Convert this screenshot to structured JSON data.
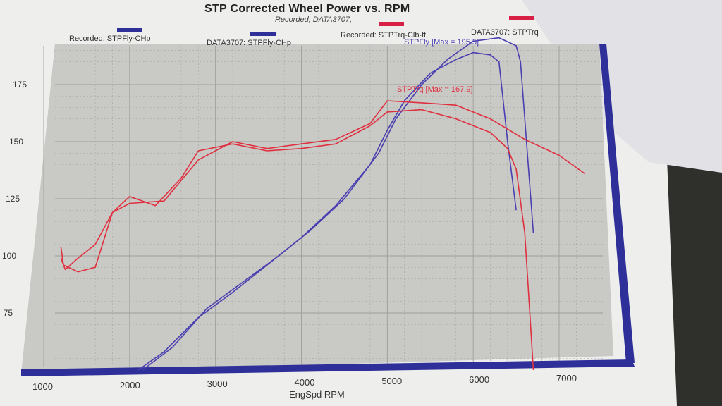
{
  "title": "STP Corrected Wheel Power vs. RPM",
  "subtitle": "Recorded, DATA3707,",
  "colors": {
    "plot_bg": "#c9c9c6",
    "paper": "#eeeeec",
    "grid": "#9d9d9a",
    "power": "#4a3fb0",
    "torque": "#e0303f",
    "frame": "#2f2f9a"
  },
  "legend": [
    {
      "label": "Recorded: STPFly-CHp",
      "color": "#2f2f9a"
    },
    {
      "label": "DATA3707: STPFly-CHp",
      "color": "#2f2f9a"
    },
    {
      "label": "Recorded: STPTrq-Clb-ft",
      "color": "#d81f45"
    },
    {
      "label": "DATA3707: STPTrq",
      "color": "#d81f45"
    }
  ],
  "chart_data": {
    "type": "line",
    "title": "STP Corrected Wheel Power vs. RPM",
    "xlabel": "EngSpd RPM",
    "ylabel": "",
    "xlim": [
      1000,
      7500
    ],
    "ylim": [
      50,
      195
    ],
    "x_ticks": [
      1000,
      2000,
      3000,
      4000,
      5000,
      6000,
      7000
    ],
    "y_ticks": [
      75,
      100,
      125,
      150,
      175
    ],
    "annotations": [
      {
        "text": "STPFly [Max = 195.5]",
        "series": "STPFly",
        "color": "#4a3fb0"
      },
      {
        "text": "STPTrq [Max = 167.9]",
        "series": "STPTrq",
        "color": "#e0303f"
      }
    ],
    "series": [
      {
        "name": "Recorded: STPFly-CHp",
        "color": "#4a3fb0",
        "points": [
          [
            2100,
            50
          ],
          [
            2400,
            58
          ],
          [
            2800,
            73
          ],
          [
            3200,
            84
          ],
          [
            3600,
            96
          ],
          [
            4000,
            108
          ],
          [
            4400,
            122
          ],
          [
            4800,
            140
          ],
          [
            5000,
            155
          ],
          [
            5200,
            168
          ],
          [
            5500,
            180
          ],
          [
            5800,
            186
          ],
          [
            6000,
            189
          ],
          [
            6200,
            188
          ],
          [
            6300,
            185
          ],
          [
            6400,
            150
          ],
          [
            6500,
            120
          ]
        ]
      },
      {
        "name": "DATA3707: STPFly-CHp",
        "color": "#4a3fb0",
        "points": [
          [
            2150,
            50
          ],
          [
            2500,
            60
          ],
          [
            2900,
            77
          ],
          [
            3300,
            88
          ],
          [
            3700,
            99
          ],
          [
            4100,
            111
          ],
          [
            4500,
            125
          ],
          [
            4900,
            145
          ],
          [
            5100,
            160
          ],
          [
            5400,
            175
          ],
          [
            5700,
            186
          ],
          [
            6000,
            194
          ],
          [
            6300,
            195.5
          ],
          [
            6500,
            192
          ],
          [
            6550,
            185
          ],
          [
            6620,
            150
          ],
          [
            6700,
            110
          ]
        ]
      },
      {
        "name": "Recorded: STPTrq-Clb-ft",
        "color": "#e0303f",
        "points": [
          [
            1200,
            99
          ],
          [
            1250,
            94
          ],
          [
            1400,
            99
          ],
          [
            1600,
            105
          ],
          [
            1800,
            119
          ],
          [
            2000,
            126
          ],
          [
            2300,
            122
          ],
          [
            2600,
            134
          ],
          [
            2800,
            146
          ],
          [
            3200,
            149
          ],
          [
            3600,
            146
          ],
          [
            4000,
            147
          ],
          [
            4400,
            149
          ],
          [
            4800,
            157
          ],
          [
            5000,
            163
          ],
          [
            5400,
            164
          ],
          [
            5800,
            160
          ],
          [
            6200,
            154
          ],
          [
            6400,
            147
          ],
          [
            6500,
            138
          ],
          [
            6600,
            110
          ],
          [
            6700,
            50
          ]
        ]
      },
      {
        "name": "DATA3707: STPTrq",
        "color": "#e0303f",
        "points": [
          [
            1200,
            104
          ],
          [
            1230,
            96
          ],
          [
            1400,
            93
          ],
          [
            1600,
            95
          ],
          [
            1800,
            119
          ],
          [
            2000,
            123
          ],
          [
            2400,
            124
          ],
          [
            2800,
            142
          ],
          [
            3200,
            150
          ],
          [
            3600,
            147
          ],
          [
            4000,
            149
          ],
          [
            4400,
            151
          ],
          [
            4800,
            158
          ],
          [
            5000,
            167.9
          ],
          [
            5400,
            167
          ],
          [
            5800,
            166
          ],
          [
            6200,
            160
          ],
          [
            6600,
            151
          ],
          [
            7000,
            144
          ],
          [
            7300,
            136
          ]
        ]
      }
    ]
  }
}
